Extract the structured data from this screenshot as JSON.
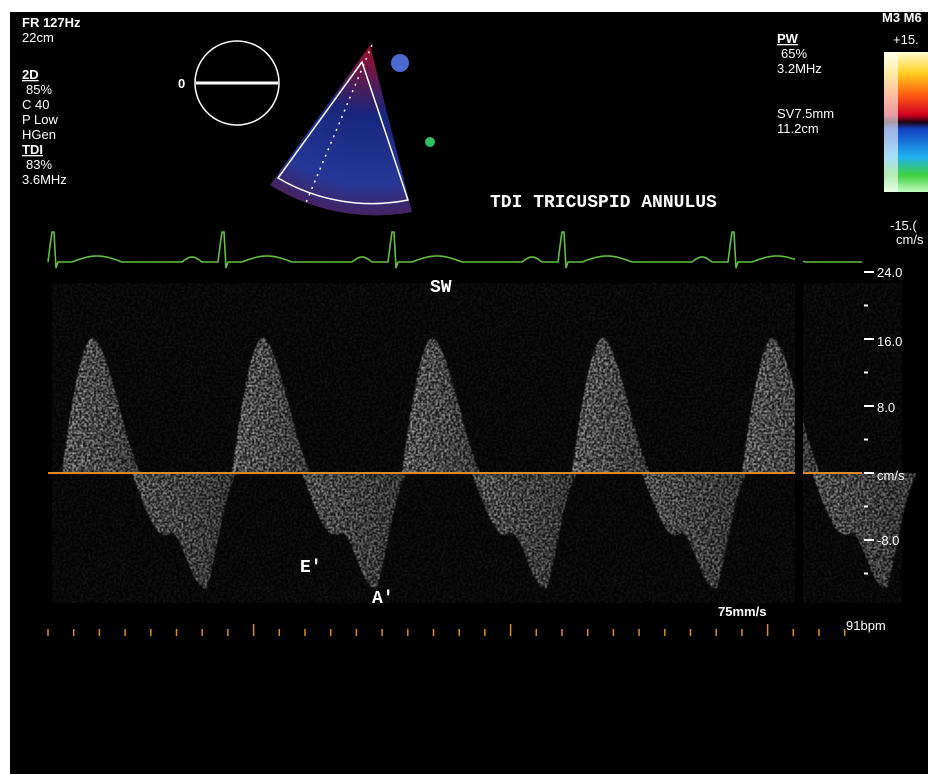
{
  "header": {
    "frame_rate": "FR 127Hz",
    "depth": "22cm"
  },
  "mode_2d": {
    "label": "2D",
    "gain": "85%",
    "compression": "C 40",
    "power": "P Low",
    "frequency": "HGen"
  },
  "tdi": {
    "label": "TDI",
    "gain": "83%",
    "frequency": "3.6MHz"
  },
  "probe_angle": "0",
  "pw": {
    "label": "PW",
    "gain": "65%",
    "frequency": "3.2MHz",
    "sample_volume": "SV7.5mm",
    "depth": "11.2cm"
  },
  "color_scale": {
    "mode": "M3 M6",
    "max": "+15.",
    "min": "-15.(",
    "unit": "cm/s"
  },
  "title": "TDI TRICUSPID ANNULUS",
  "annotations": {
    "sw": "SW",
    "e_prime": "E'",
    "a_prime": "A'"
  },
  "velocity_scale": [
    "24.0",
    "16.0",
    "8.0",
    "cm/s",
    "-8.0"
  ],
  "sweep_speed": "75mm/s",
  "heart_rate": "91bpm"
}
